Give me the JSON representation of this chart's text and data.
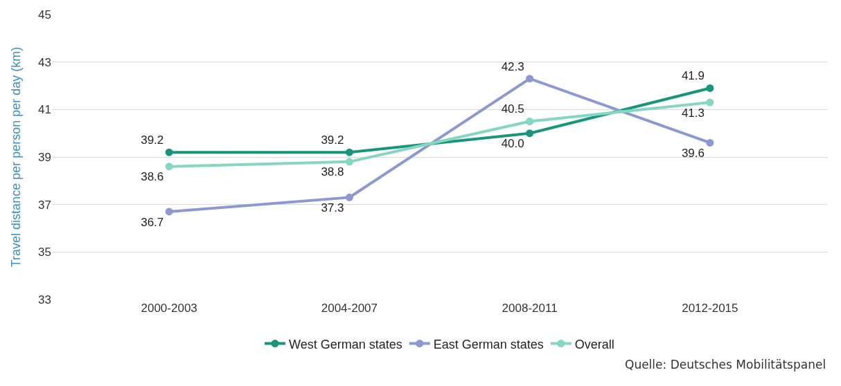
{
  "chart_data": {
    "type": "line",
    "ylabel": "Travel distance per person per day (km)",
    "categories": [
      "2000-2003",
      "2004-2007",
      "2008-2011",
      "2012-2015"
    ],
    "series": [
      {
        "name": "West German states",
        "color": "#17967c",
        "values": [
          39.2,
          39.2,
          40.0,
          41.9
        ],
        "value_labels": [
          "39.2",
          "39.2",
          "40.0",
          "41.9"
        ]
      },
      {
        "name": "East German states",
        "color": "#8c98d2",
        "values": [
          36.7,
          37.3,
          42.3,
          39.6
        ],
        "value_labels": [
          "36.7",
          "37.3",
          "42.3",
          "39.6"
        ]
      },
      {
        "name": "Overall",
        "color": "#85d6c3",
        "values": [
          38.6,
          38.8,
          40.5,
          41.3
        ],
        "value_labels": [
          "38.6",
          "38.8",
          "40.5",
          "41.3"
        ]
      }
    ],
    "ylim": [
      33,
      45
    ],
    "yticks": [
      33,
      35,
      37,
      39,
      41,
      43,
      45
    ],
    "grid": "y",
    "legend": "bottom",
    "marker": "circle",
    "line_style": "solid",
    "annotations": [
      "Quelle: Deutsches Mobilitätspanel"
    ]
  }
}
